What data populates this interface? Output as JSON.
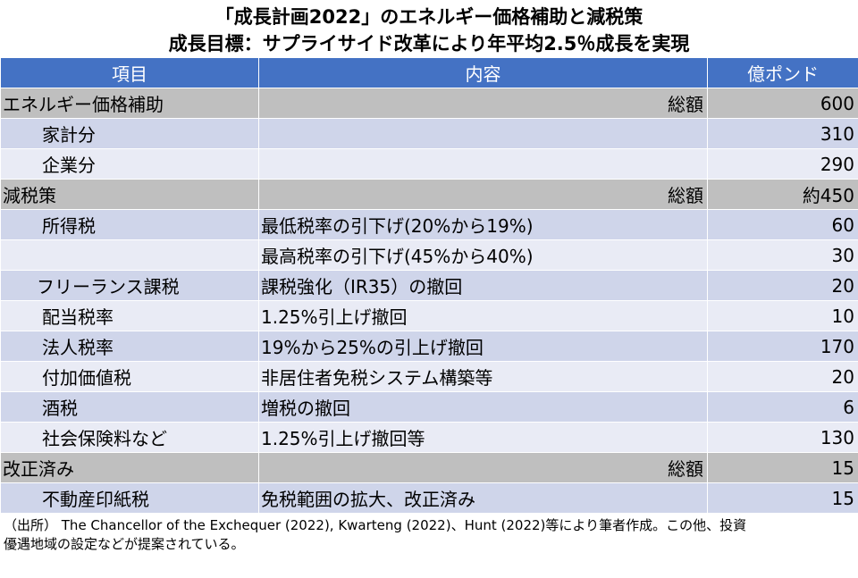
{
  "title": {
    "line1": "「成長計画2022」のエネルギー価格補助と減税策",
    "line2": "成長目標：サプライサイド改革により年平均2.5％成長を実現"
  },
  "table": {
    "headers": [
      "項目",
      "内容",
      "億ポンド"
    ],
    "rows": [
      {
        "type": "total",
        "item": "エネルギー価格補助",
        "content": "総額",
        "amount": "600"
      },
      {
        "type": "odd",
        "item": "家計分",
        "content": "",
        "amount": "310"
      },
      {
        "type": "even",
        "item": "企業分",
        "content": "",
        "amount": "290"
      },
      {
        "type": "total",
        "item": "減税策",
        "content": "総額",
        "amount": "約450"
      },
      {
        "type": "odd",
        "item": "所得税",
        "content": "最低税率の引下げ(20%から19%)",
        "amount": "60"
      },
      {
        "type": "even",
        "item": "",
        "content": "最高税率の引下げ(45%から40%)",
        "amount": "30"
      },
      {
        "type": "odd",
        "item": "フリーランス課税",
        "content": "課税強化（IR35）の撤回",
        "amount": "20"
      },
      {
        "type": "even",
        "item": "配当税率",
        "content": "1.25%引上げ撤回",
        "amount": "10"
      },
      {
        "type": "odd",
        "item": "法人税率",
        "content": "19%から25%の引上げ撤回",
        "amount": "170"
      },
      {
        "type": "even",
        "item": "付加価値税",
        "content": "非居住者免税システム構築等",
        "amount": "20"
      },
      {
        "type": "odd",
        "item": "酒税",
        "content": "増税の撤回",
        "amount": "6"
      },
      {
        "type": "even",
        "item": "社会保険料など",
        "content": "1.25%引上げ撤回等",
        "amount": "130"
      },
      {
        "type": "total",
        "item": "改正済み",
        "content": "総額",
        "amount": "15"
      },
      {
        "type": "odd",
        "item": "不動産印紙税",
        "content": "免税範囲の拡大、改正済み",
        "amount": "15"
      }
    ]
  },
  "note": {
    "line1": "（出所） The Chancellor of the Exchequer (2022), Kwarteng (2022)、Hunt (2022)等により筆者作成。この他、投資",
    "line2": "優遇地域の設定などが提案されている。"
  }
}
